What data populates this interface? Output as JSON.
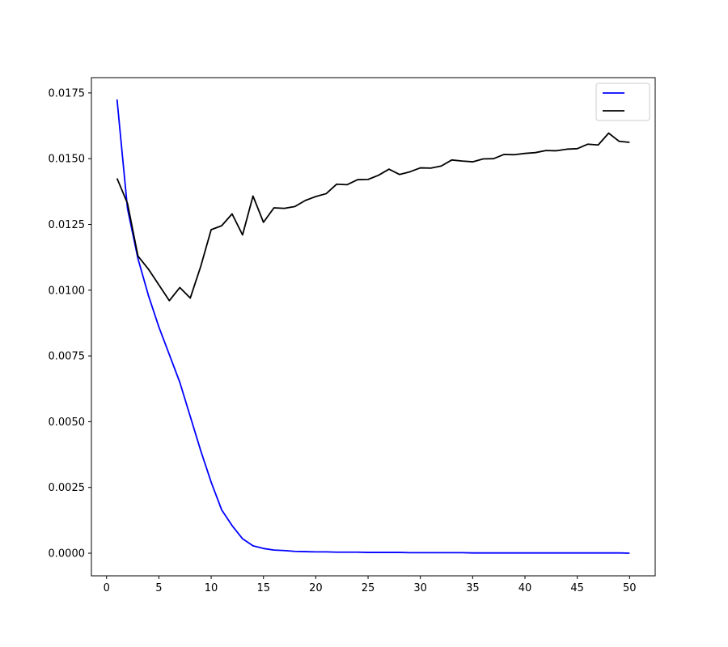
{
  "chart_data": {
    "type": "line",
    "title": "",
    "xlabel": "",
    "ylabel": "",
    "xlim": [
      -1.45,
      52.45
    ],
    "ylim": [
      -0.00086,
      0.01808
    ],
    "xticks": [
      0,
      5,
      10,
      15,
      20,
      25,
      30,
      35,
      40,
      45,
      50
    ],
    "xtick_labels": [
      "0",
      "5",
      "10",
      "15",
      "20",
      "25",
      "30",
      "35",
      "40",
      "45",
      "50"
    ],
    "yticks": [
      0.0,
      0.0025,
      0.005,
      0.0075,
      0.01,
      0.0125,
      0.015,
      0.0175
    ],
    "ytick_labels": [
      "0.0000",
      "0.0025",
      "0.0050",
      "0.0075",
      "0.0100",
      "0.0125",
      "0.0150",
      "0.0175"
    ],
    "grid": false,
    "legend_position": "top-right",
    "x": [
      1,
      2,
      3,
      4,
      5,
      6,
      7,
      8,
      9,
      10,
      11,
      12,
      13,
      14,
      15,
      16,
      17,
      18,
      19,
      20,
      21,
      22,
      23,
      24,
      25,
      26,
      27,
      28,
      29,
      30,
      31,
      32,
      33,
      34,
      35,
      36,
      37,
      38,
      39,
      40,
      41,
      42,
      43,
      44,
      45,
      46,
      47,
      48,
      49,
      50
    ],
    "series": [
      {
        "name": "",
        "color": "#0000ff",
        "values": [
          0.01725,
          0.0131,
          0.0112,
          0.0098,
          0.0086,
          0.00755,
          0.0065,
          0.0052,
          0.0039,
          0.0027,
          0.00165,
          0.00105,
          0.00055,
          0.00028,
          0.00018,
          0.00012,
          0.0001,
          7e-05,
          6e-05,
          5e-05,
          5e-05,
          4e-05,
          4e-05,
          4e-05,
          3e-05,
          3e-05,
          3e-05,
          3e-05,
          2e-05,
          2e-05,
          2e-05,
          2e-05,
          2e-05,
          2e-05,
          1e-05,
          1e-05,
          1e-05,
          1e-05,
          1e-05,
          1e-05,
          1e-05,
          1e-05,
          1e-05,
          1e-05,
          1e-05,
          1e-05,
          1e-05,
          1e-05,
          1e-05,
          0.0
        ]
      },
      {
        "name": "",
        "color": "#000000",
        "values": [
          0.01425,
          0.0133,
          0.0113,
          0.0108,
          0.0102,
          0.0096,
          0.0101,
          0.0097,
          0.0109,
          0.0123,
          0.01245,
          0.0129,
          0.0121,
          0.01358,
          0.01258,
          0.01313,
          0.01311,
          0.01318,
          0.01341,
          0.01356,
          0.01367,
          0.01403,
          0.01401,
          0.0142,
          0.01421,
          0.01437,
          0.0146,
          0.0144,
          0.0145,
          0.01465,
          0.01464,
          0.01472,
          0.01495,
          0.01491,
          0.01488,
          0.01499,
          0.015,
          0.01516,
          0.01515,
          0.0152,
          0.01523,
          0.01531,
          0.0153,
          0.01536,
          0.01538,
          0.01555,
          0.01552,
          0.01597,
          0.01566,
          0.01562
        ]
      }
    ]
  }
}
